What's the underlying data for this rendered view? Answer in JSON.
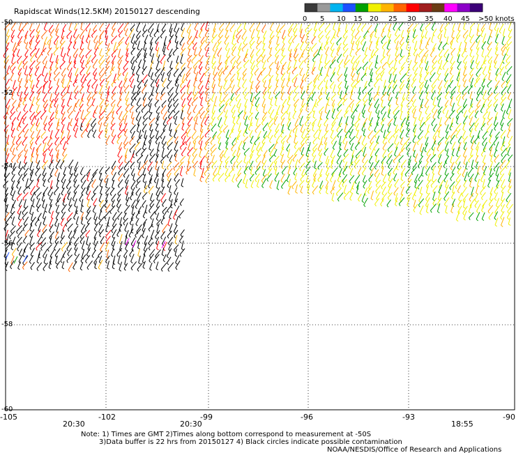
{
  "title": "Rapidscat Winds(12.5KM) 20150127 descending",
  "colorbar": {
    "labels": [
      "0",
      "5",
      "10",
      "15",
      "20",
      "25",
      "30",
      "35",
      "40",
      "45",
      ">50 knots"
    ],
    "colors": [
      "#3a3a3a",
      "#9a9a9a",
      "#00b4f0",
      "#1e50ff",
      "#00a000",
      "#f0f000",
      "#ffb400",
      "#ff6400",
      "#ff0000",
      "#a01e1e",
      "#6a3c14",
      "#ff00ff",
      "#8c00c8",
      "#3c0078"
    ]
  },
  "lat_labels": [
    "-50",
    "-52",
    "-54",
    "-56",
    "-58",
    "-60"
  ],
  "lon_labels": [
    "-105",
    "-102",
    "-99",
    "-96",
    "-93",
    "-90"
  ],
  "times": [
    "20:30",
    "20:30",
    "18:55"
  ],
  "time_color": "#a000c0",
  "notes": [
    "Note: 1) Times are GMT 2)Times along bottom correspond to measurement at -50S",
    "3)Data buffer is 22 hrs from 20150127 4) Black circles indicate possible contamination"
  ],
  "credit": "NOAA/NESDIS/Office of Research and Applications",
  "map": {
    "lat_range": [
      -60,
      -50
    ],
    "lon_range": [
      -105,
      -90
    ],
    "wind_barb_colors": [
      "#000000",
      "#ff0000",
      "#ff6400",
      "#ffb400",
      "#f0f000",
      "#00a000"
    ]
  }
}
